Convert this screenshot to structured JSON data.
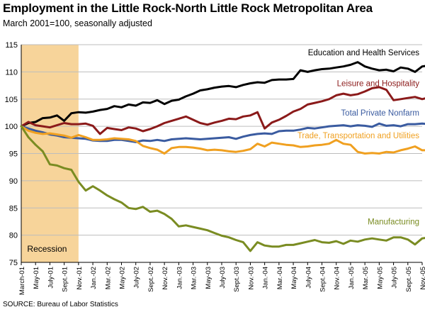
{
  "title": "Employment in the Little Rock-North Little Rock Metropolitan Area",
  "subtitle": "March 2001=100, seasonally adjusted",
  "source": "SOURCE: Bureau of Labor Statistics",
  "chart_data": {
    "type": "line",
    "ylim": [
      75,
      115
    ],
    "yticks": [
      75,
      80,
      85,
      90,
      95,
      100,
      105,
      110,
      115
    ],
    "xlim": [
      0,
      56
    ],
    "xticks": [
      "March-01",
      "May-01",
      "July-01",
      "Sept.-01",
      "Nov.-01",
      "Jan.-02",
      "Mar.-02",
      "May-02",
      "July-02",
      "Sept.-02",
      "Nov.-02",
      "Jan.-03",
      "Mar.-03",
      "May-03",
      "July-03",
      "Sept.-03",
      "Nov.-03",
      "Jan.-04",
      "Mar.-04",
      "May-04",
      "July-04",
      "Sept.-04",
      "Nov.-04",
      "Jan.-05",
      "Mar.-05",
      "May-05",
      "July-05",
      "Sept.-05",
      "Nov.-05"
    ],
    "grid": true,
    "recession": {
      "label": "Recession",
      "start": "March-01",
      "end": "Nov.-01",
      "color": "#f7d49a"
    },
    "series": [
      {
        "name": "Education and Health Services",
        "color": "#000000",
        "values": [
          100.0,
          100.6,
          100.8,
          101.5,
          101.6,
          102.0,
          101.0,
          102.4,
          102.6,
          102.5,
          102.7,
          103.0,
          103.2,
          103.7,
          103.5,
          104.0,
          103.8,
          104.4,
          104.3,
          104.8,
          104.1,
          104.7,
          104.9,
          105.5,
          106.0,
          106.6,
          106.8,
          107.1,
          107.3,
          107.4,
          107.2,
          107.6,
          107.9,
          108.1,
          108.0,
          108.5,
          108.6,
          108.6,
          108.7,
          110.3,
          110.0,
          110.3,
          110.5,
          110.6,
          110.8,
          111.0,
          111.3,
          111.8,
          111.0,
          110.6,
          110.3,
          110.4,
          110.1,
          110.8,
          110.6,
          110.0,
          111.0,
          111.2
        ]
      },
      {
        "name": "Leisure and Hospitality",
        "color": "#8b1a1a",
        "values": [
          100.0,
          100.8,
          100.2,
          100.0,
          99.8,
          100.2,
          100.6,
          100.4,
          100.4,
          100.5,
          100.1,
          98.6,
          99.7,
          99.5,
          99.3,
          99.8,
          99.6,
          99.1,
          99.5,
          100.0,
          100.6,
          101.0,
          101.4,
          101.8,
          101.2,
          100.6,
          100.3,
          100.7,
          101.0,
          101.4,
          101.3,
          101.8,
          102.0,
          102.6,
          99.6,
          100.7,
          101.2,
          101.9,
          102.7,
          103.2,
          104.0,
          104.3,
          104.6,
          105.0,
          105.7,
          106.0,
          105.7,
          105.9,
          106.4,
          107.0,
          107.2,
          106.7,
          104.8,
          105.0,
          105.2,
          105.4,
          105.0,
          105.3,
          105.6,
          105.5,
          105.3
        ]
      },
      {
        "name": "Total Private Nonfarm",
        "color": "#3a5ba0",
        "values": [
          100.0,
          99.6,
          99.2,
          98.9,
          98.5,
          98.3,
          98.0,
          97.9,
          97.8,
          97.7,
          97.4,
          97.3,
          97.3,
          97.5,
          97.5,
          97.3,
          97.1,
          97.4,
          97.3,
          97.5,
          97.3,
          97.6,
          97.7,
          97.8,
          97.7,
          97.6,
          97.7,
          97.8,
          97.9,
          98.0,
          97.7,
          98.1,
          98.4,
          98.6,
          98.7,
          98.6,
          99.1,
          99.2,
          99.2,
          99.4,
          99.7,
          99.6,
          99.8,
          100.0,
          100.1,
          100.2,
          100.0,
          100.2,
          100.1,
          99.9,
          100.5,
          100.1,
          100.2,
          100.0,
          100.4,
          100.4,
          100.5,
          100.4
        ]
      },
      {
        "name": "Trade, Transportation and Utilities",
        "color": "#f0a020",
        "values": [
          100.0,
          99.2,
          98.8,
          98.6,
          98.7,
          98.5,
          98.3,
          97.9,
          98.4,
          98.0,
          97.5,
          97.5,
          97.6,
          97.8,
          97.7,
          97.6,
          97.3,
          96.4,
          96.0,
          95.7,
          95.0,
          96.0,
          96.2,
          96.2,
          96.1,
          95.9,
          95.6,
          95.7,
          95.6,
          95.4,
          95.3,
          95.5,
          95.8,
          96.8,
          96.3,
          97.0,
          96.8,
          96.6,
          96.5,
          96.2,
          96.3,
          96.5,
          96.6,
          96.8,
          97.5,
          96.8,
          96.6,
          95.3,
          95.0,
          95.1,
          95.0,
          95.3,
          95.2,
          95.6,
          95.9,
          96.3,
          95.6,
          95.6,
          95.7
        ]
      },
      {
        "name": "Manufacturing",
        "color": "#7a8c22",
        "values": [
          100.0,
          98.0,
          96.6,
          95.4,
          93.0,
          92.8,
          92.3,
          92.0,
          89.8,
          88.2,
          89.0,
          88.2,
          87.3,
          86.6,
          86.0,
          85.0,
          84.8,
          85.2,
          84.3,
          84.5,
          83.9,
          83.0,
          81.6,
          81.8,
          81.5,
          81.2,
          80.9,
          80.4,
          79.9,
          79.6,
          79.1,
          78.7,
          77.1,
          78.7,
          78.1,
          77.9,
          77.9,
          78.2,
          78.2,
          78.5,
          78.8,
          79.1,
          78.7,
          78.6,
          78.9,
          78.4,
          79.0,
          78.8,
          79.2,
          79.4,
          79.2,
          79.0,
          79.6,
          79.6,
          79.2,
          78.3,
          79.4,
          79.6
        ]
      }
    ],
    "annotations": [
      {
        "text": "Education and Health Services",
        "series": 0
      },
      {
        "text": "Leisure and Hospitality",
        "series": 1
      },
      {
        "text": "Total Private Nonfarm",
        "series": 2
      },
      {
        "text": "Trade, Transportation and Utilities",
        "series": 3
      },
      {
        "text": "Manufacturing",
        "series": 4
      }
    ]
  }
}
